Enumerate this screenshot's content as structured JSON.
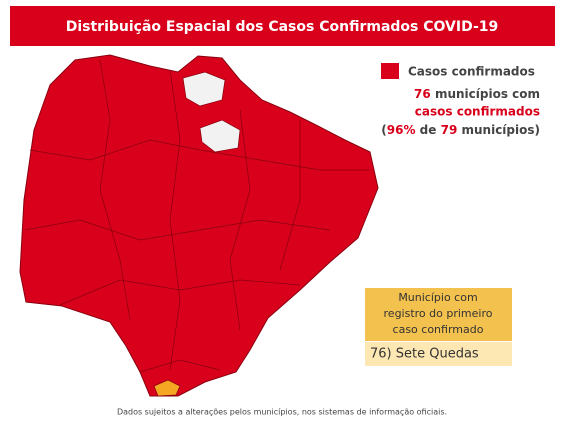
{
  "header": {
    "title": "Distribuição Espacial dos Casos Confirmados COVID-19"
  },
  "legend": {
    "label": "Casos confirmados"
  },
  "summary": {
    "count": "76",
    "count_text": "municípios com",
    "highlight": "casos confirmados",
    "parts": [
      "(",
      "96%",
      "de",
      "79",
      "municípios)"
    ]
  },
  "first_case": {
    "heading": [
      "Município com",
      "registro do primeiro",
      "caso confirmado"
    ],
    "municipality": "76) Sete Quedas"
  },
  "footer": "Dados sujeitos a alterações pelos municípios, nos sistemas de informação oficiais."
}
